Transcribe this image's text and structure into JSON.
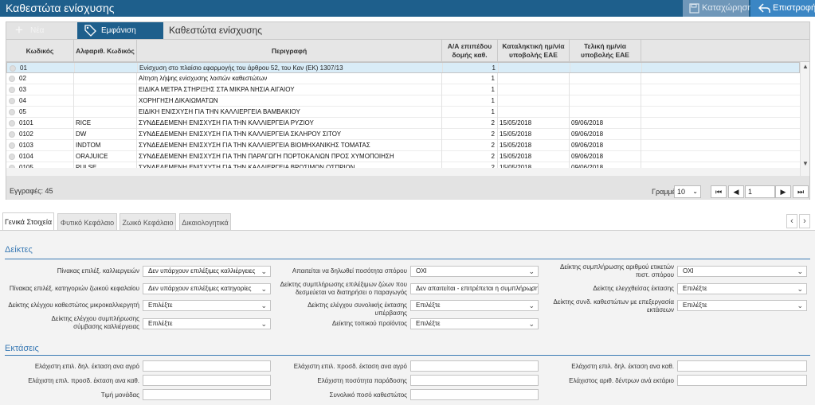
{
  "window": {
    "title": "Καθεστώτα ενίσχυσης",
    "save_label": "Καταχώρηση",
    "back_label": "Επιστροφή"
  },
  "toolbar": {
    "new_label": "Νέα εγγραφή",
    "filter_label": "Εμφάνιση φίλτρων",
    "grid_title": "Καθεστώτα ενίσχυσης"
  },
  "columns": [
    "Κωδικός",
    "Αλφαριθ. Κωδικός",
    "Περιγραφή",
    "Α/Α επιπέδου δομής καθ.",
    "Καταληκτική ημ/νία υποβολής ΕΑΕ",
    "Τελική ημ/νία υποβολής ΕΑΕ"
  ],
  "rows": [
    {
      "code": "01",
      "alpha": "",
      "desc": "Ενίσχυση στο πλαίσιο εφαρμογής του άρθρου 52, του Καν (ΕΚ) 1307/13",
      "level": "1",
      "deadline": "",
      "final": ""
    },
    {
      "code": "02",
      "alpha": "",
      "desc": "Αίτηση λήψης ενίσχυσης λοιπών καθεστώτων",
      "level": "1",
      "deadline": "",
      "final": ""
    },
    {
      "code": "03",
      "alpha": "",
      "desc": "ΕΙΔΙΚΑ ΜΕΤΡΑ ΣΤΗΡΙΞΗΣ ΣΤΑ ΜΙΚΡΑ ΝΗΣΙΑ ΑΙΓΑΙΟΥ",
      "level": "1",
      "deadline": "",
      "final": ""
    },
    {
      "code": "04",
      "alpha": "",
      "desc": "ΧΟΡΗΓΗΣΗ ΔΙΚΑΙΩΜΑΤΩΝ",
      "level": "1",
      "deadline": "",
      "final": ""
    },
    {
      "code": "05",
      "alpha": "",
      "desc": "ΕΙΔΙΚΗ ΕΝΙΣΧΥΣΗ ΓΙΑ ΤΗΝ ΚΑΛΛΙΕΡΓΕΙΑ ΒΑΜΒΑΚΙΟΥ",
      "level": "1",
      "deadline": "",
      "final": ""
    },
    {
      "code": "0101",
      "alpha": "RICE",
      "desc": "ΣΥΝΔΕΔΕΜΕΝΗ ΕΝΙΣΧΥΣΗ ΓΙΑ ΤΗΝ ΚΑΛΛΙΕΡΓΕΙΑ ΡΥΖΙΟΥ",
      "level": "2",
      "deadline": "15/05/2018",
      "final": "09/06/2018"
    },
    {
      "code": "0102",
      "alpha": "DW",
      "desc": "ΣΥΝΔΕΔΕΜΕΝΗ ΕΝΙΣΧΥΣΗ ΓΙΑ ΤΗΝ ΚΑΛΛΙΕΡΓΕΙΑ ΣΚΛΗΡΟΥ ΣΙΤΟΥ",
      "level": "2",
      "deadline": "15/05/2018",
      "final": "09/06/2018"
    },
    {
      "code": "0103",
      "alpha": "INDTOM",
      "desc": "ΣΥΝΔΕΔΕΜΕΝΗ ΕΝΙΣΧΥΣΗ ΓΙΑ ΤΗΝ ΚΑΛΛΙΕΡΓΕΙΑ ΒΙΟΜΗΧΑΝΙΚΗΣ ΤΟΜΑΤΑΣ",
      "level": "2",
      "deadline": "15/05/2018",
      "final": "09/06/2018"
    },
    {
      "code": "0104",
      "alpha": "ORAJUICE",
      "desc": "ΣΥΝΔΕΔΕΜΕΝΗ ΕΝΙΣΧΥΣΗ ΓΙΑ ΤΗΝ ΠΑΡΑΓΩΓΗ ΠΟΡΤΟΚΑΛΙΩΝ ΠΡΟΣ ΧΥΜΟΠΟΙΗΣΗ",
      "level": "2",
      "deadline": "15/05/2018",
      "final": "09/06/2018"
    },
    {
      "code": "0105",
      "alpha": "PULSE",
      "desc": "ΣΥΝΔΕΔΕΜΕΝΗ ΕΝΙΣΧΥΣΗ ΓΙΑ ΤΗΝ ΚΑΛΛΙΕΡΓΕΙΑ ΒΡΩΣΙΜΩΝ ΟΣΠΡΙΩΝ",
      "level": "2",
      "deadline": "15/05/2018",
      "final": "09/06/2018"
    }
  ],
  "footer": {
    "count_label": "Εγγραφές: 45",
    "rows_label": "Γραμμές:",
    "rows_value": "10",
    "page_value": "1"
  },
  "tabs": [
    "Γενικά Στοιχεία",
    "Φυτικό Κεφάλαιο",
    "Ζωικό Κεφάλαιο",
    "Δικαιολογητικά"
  ],
  "sections": {
    "indicators": "Δείκτες",
    "areas": "Εκτάσεις"
  },
  "indicators": [
    {
      "label": "Πίνακας επιλέξ. καλλιεργειών",
      "value": "Δεν υπάρχουν επιλέξιμες καλλιέργειες"
    },
    {
      "label": "Πίνακας επιλέξ. κατηγοριών ζωικού κεφαλαίου",
      "value": "Δεν υπάρχουν επιλέξιμες κατηγορίες"
    },
    {
      "label": "Δείκτης ελέγχου καθεστώτος μικροκαλλιεργητή",
      "value": "Επιλέξτε"
    },
    {
      "label": "Δείκτης ελέγχου συμπλήρωσης σύμβασης καλλιέργειας",
      "value": "Επιλέξτε"
    },
    {
      "label": "Απαιτείται να δηλωθεί ποσότητα σπόρου",
      "value": "ΟΧΙ"
    },
    {
      "label": "Δείκτης συμπλήρωσης επιλέξιμων ζώων που δεσμεύεται να διατηρήσει ο παραγωγός",
      "value": "Δεν απαιτείται - επιτρέπεται η συμπλήρωση"
    },
    {
      "label": "Δείκτης ελέγχου συνολικής έκτασης υπέρβασης",
      "value": "Επιλέξτε"
    },
    {
      "label": "Δείκτης τοπικού προϊόντος",
      "value": "Επιλέξτε"
    },
    {
      "label": "Δείκτης συμπλήρωσης αριθμού ετικετών πιστ. σπόρου",
      "value": "ΟΧΙ"
    },
    {
      "label": "Δείκτης ελεγχθείσας έκτασης",
      "value": "Επιλέξτε"
    },
    {
      "label": "Δείκτης συνδ. καθεστώτων με επεξεργασία εκτάσεων",
      "value": "Επιλέξτε"
    }
  ],
  "areas": [
    {
      "label": "Ελάχιστη επιλ. δηλ. έκταση ανα αγρό"
    },
    {
      "label": "Ελάχιστη επιλ. προσδ. έκταση ανα καθ."
    },
    {
      "label": "Τιμή μονάδας"
    },
    {
      "label": "Ελάχιστη επιλ. προσδ. έκταση ανα αγρό"
    },
    {
      "label": "Ελάχιστη ποσότητα παράδοσης"
    },
    {
      "label": "Συνολικό ποσό καθεστώτος"
    },
    {
      "label": "Ελάχιστη επιλ. δηλ. έκταση ανα καθ."
    },
    {
      "label": "Ελάχιστος αριθ. δέντρων ανά εκτάριο"
    }
  ]
}
